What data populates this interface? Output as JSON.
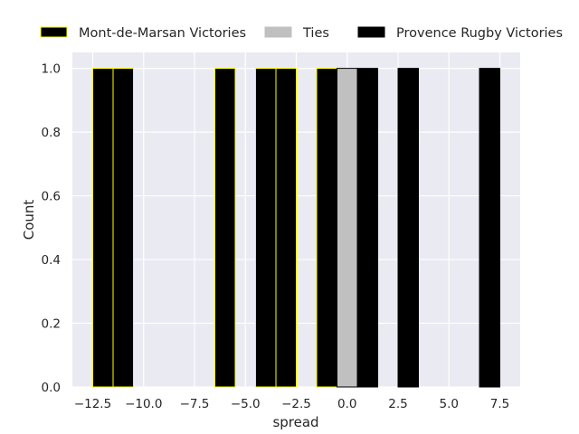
{
  "chart_data": {
    "type": "bar",
    "title": "",
    "xlabel": "spread",
    "ylabel": "Count",
    "xlim": [
      -13.5,
      8.5
    ],
    "ylim": [
      0,
      1.05
    ],
    "xticks": [
      -12.5,
      -10.0,
      -7.5,
      -5.0,
      -2.5,
      0.0,
      2.5,
      5.0,
      7.5
    ],
    "xtick_labels": [
      "−12.5",
      "−10.0",
      "−7.5",
      "−5.0",
      "−2.5",
      "0.0",
      "2.5",
      "5.0",
      "7.5"
    ],
    "yticks": [
      0.0,
      0.2,
      0.4,
      0.6,
      0.8,
      1.0
    ],
    "ytick_labels": [
      "0.0",
      "0.2",
      "0.4",
      "0.6",
      "0.8",
      "1.0"
    ],
    "grid": true,
    "legend_placement": "top",
    "bar_width": 1.0,
    "series": [
      {
        "name": "Mont-de-Marsan Victories",
        "fill": "#000000",
        "edge": "#ffff00",
        "x": [
          -12,
          -11,
          -6,
          -4,
          -3,
          -1
        ],
        "values": [
          1,
          1,
          1,
          1,
          1,
          1
        ]
      },
      {
        "name": "Ties",
        "fill": "#c0c0c0",
        "edge": "#000000",
        "x": [
          0
        ],
        "values": [
          1
        ]
      },
      {
        "name": "Provence Rugby Victories",
        "fill": "#000000",
        "edge": "#000000",
        "x": [
          1,
          3,
          7
        ],
        "values": [
          1,
          1,
          1
        ]
      }
    ]
  },
  "colors": {
    "plot_background": "#eaeaf2",
    "grid": "#ffffff",
    "text": "#262626"
  }
}
